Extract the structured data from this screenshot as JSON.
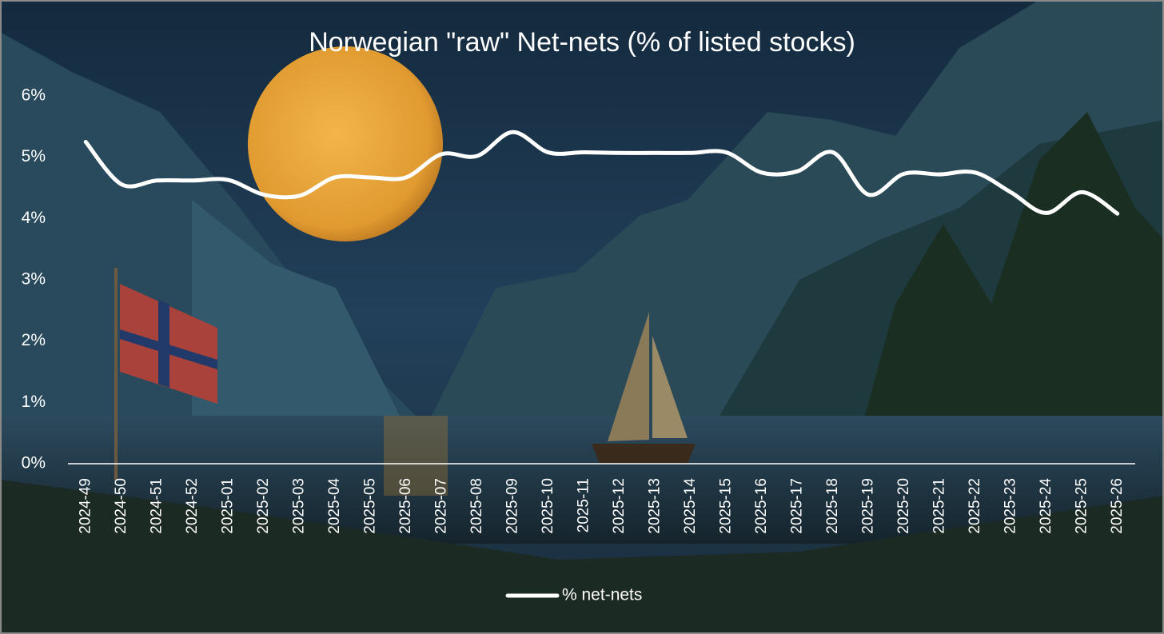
{
  "chart_data": {
    "type": "line",
    "title": "Norwegian \"raw\" Net-nets (% of listed stocks)",
    "categories": [
      "2024-49",
      "2024-50",
      "2024-51",
      "2024-52",
      "2025-01",
      "2025-02",
      "2025-03",
      "2025-04",
      "2025-05",
      "2025-06",
      "2025-07",
      "2025-08",
      "2025-09",
      "2025-10",
      "2025-11",
      "2025-12",
      "2025-13",
      "2025-14",
      "2025-15",
      "2025-16",
      "2025-17",
      "2025-18",
      "2025-19",
      "2025-20",
      "2025-21",
      "2025-22",
      "2025-23",
      "2025-24",
      "2025-25",
      "2025-26"
    ],
    "series": [
      {
        "name": "% net-nets",
        "color": "#ffffff",
        "values": [
          5.25,
          4.56,
          4.62,
          4.62,
          4.63,
          4.39,
          4.37,
          4.67,
          4.67,
          4.67,
          5.05,
          5.02,
          5.41,
          5.08,
          5.08,
          5.07,
          5.07,
          5.07,
          5.08,
          4.75,
          4.77,
          5.08,
          4.39,
          4.73,
          4.72,
          4.75,
          4.43,
          4.09,
          4.43,
          4.08
        ]
      }
    ],
    "ylim": [
      0,
      6
    ],
    "yticks": [
      {
        "value": 0,
        "label": "0%"
      },
      {
        "value": 1,
        "label": "1%"
      },
      {
        "value": 2,
        "label": "2%"
      },
      {
        "value": 3,
        "label": "3%"
      },
      {
        "value": 4,
        "label": "4%"
      },
      {
        "value": 5,
        "label": "5%"
      },
      {
        "value": 6,
        "label": "6%"
      }
    ],
    "grid": false,
    "legend": "bottom"
  }
}
